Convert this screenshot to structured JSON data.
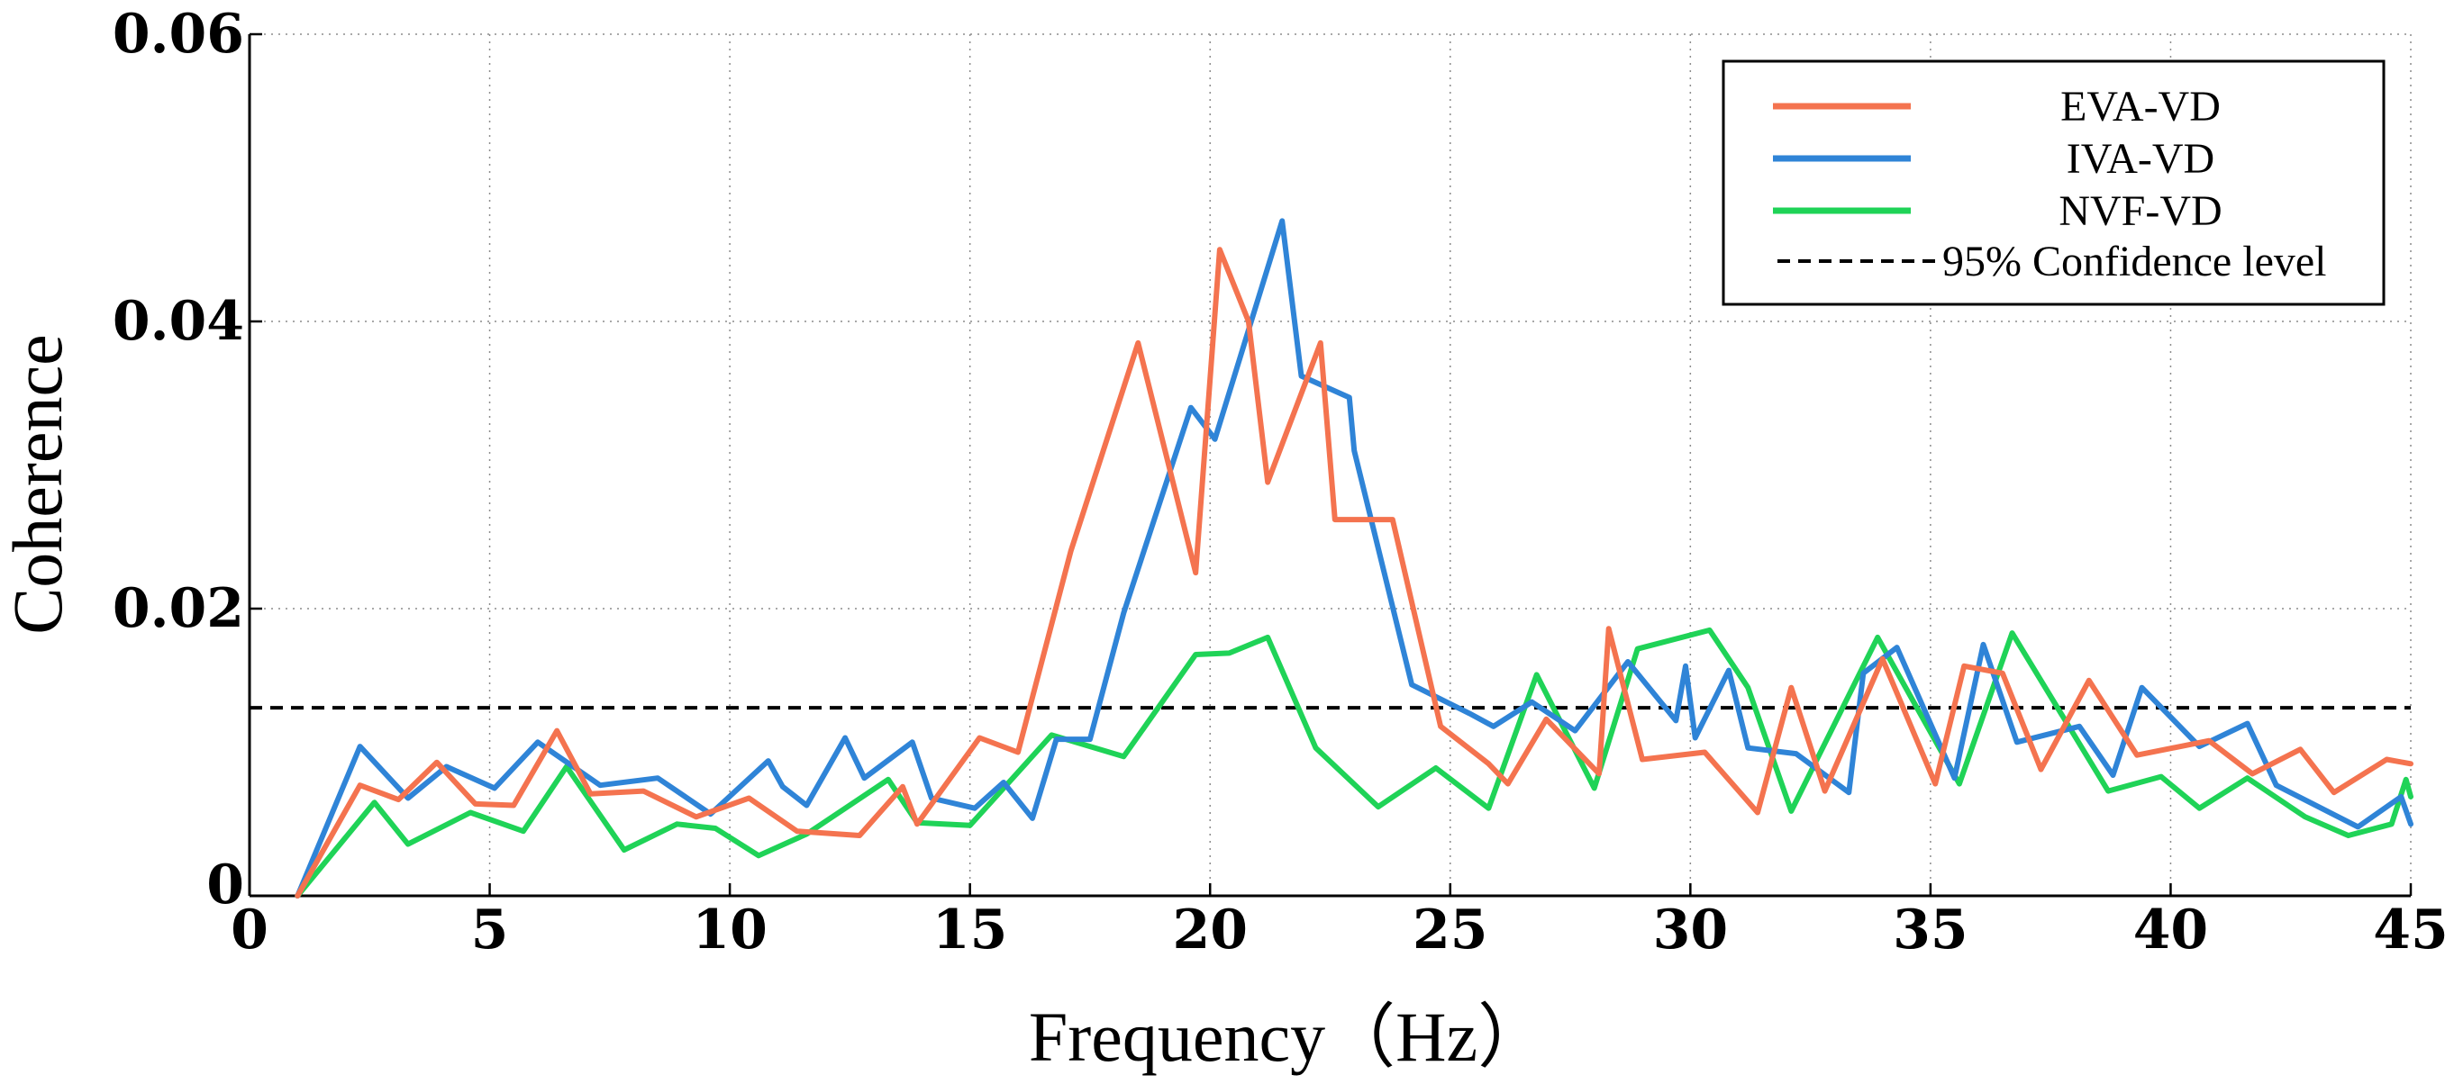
{
  "chart_data": {
    "type": "line",
    "title": "",
    "xlabel": "Frequency（Hz）",
    "ylabel": "Coherence",
    "xlim": [
      0,
      45
    ],
    "ylim": [
      0,
      0.06
    ],
    "x_ticks": [
      0,
      5,
      10,
      15,
      20,
      25,
      30,
      35,
      40,
      45
    ],
    "x_tick_labels": [
      "0",
      "5",
      "10",
      "15",
      "20",
      "25",
      "30",
      "35",
      "40",
      "45"
    ],
    "y_ticks": [
      0,
      0.02,
      0.04,
      0.06
    ],
    "y_tick_labels": [
      "0",
      "0.02",
      "0.04",
      "0.06"
    ],
    "grid": true,
    "legend_position": "top-right",
    "series": [
      {
        "name": "EVA-VD",
        "color": "#f4734f",
        "points": [
          [
            1,
            0
          ],
          [
            2.3,
            0.0077
          ],
          [
            3.1,
            0.0067
          ],
          [
            3.9,
            0.0093
          ],
          [
            4.7,
            0.0064
          ],
          [
            5.5,
            0.0063
          ],
          [
            6.4,
            0.0115
          ],
          [
            7.1,
            0.0071
          ],
          [
            8.2,
            0.0073
          ],
          [
            9.3,
            0.0055
          ],
          [
            10.4,
            0.0068
          ],
          [
            11.4,
            0.0045
          ],
          [
            12.7,
            0.0042
          ],
          [
            13.6,
            0.0076
          ],
          [
            13.9,
            0.005
          ],
          [
            15.2,
            0.011
          ],
          [
            16,
            0.01
          ],
          [
            17.1,
            0.024
          ],
          [
            18.5,
            0.0385
          ],
          [
            19.7,
            0.0225
          ],
          [
            20.2,
            0.045
          ],
          [
            20.8,
            0.04
          ],
          [
            21.2,
            0.0288
          ],
          [
            22.3,
            0.0385
          ],
          [
            22.6,
            0.0262
          ],
          [
            23.8,
            0.0262
          ],
          [
            24.8,
            0.0118
          ],
          [
            25.8,
            0.0092
          ],
          [
            26.2,
            0.0078
          ],
          [
            27,
            0.0123
          ],
          [
            28.1,
            0.0085
          ],
          [
            28.3,
            0.0186
          ],
          [
            29,
            0.0095
          ],
          [
            30.3,
            0.01
          ],
          [
            31.4,
            0.0058
          ],
          [
            32.1,
            0.0145
          ],
          [
            32.8,
            0.0073
          ],
          [
            34,
            0.0165
          ],
          [
            35.1,
            0.0078
          ],
          [
            35.7,
            0.016
          ],
          [
            36.5,
            0.0155
          ],
          [
            37.3,
            0.0088
          ],
          [
            38.3,
            0.015
          ],
          [
            39.3,
            0.0098
          ],
          [
            40.8,
            0.0108
          ],
          [
            41.7,
            0.0085
          ],
          [
            42.7,
            0.0102
          ],
          [
            43.4,
            0.0072
          ],
          [
            44.5,
            0.0095
          ],
          [
            45,
            0.0092
          ]
        ]
      },
      {
        "name": "IVA-VD",
        "color": "#2f84d7",
        "points": [
          [
            1,
            0
          ],
          [
            2.3,
            0.0104
          ],
          [
            3.3,
            0.0068
          ],
          [
            4.1,
            0.009
          ],
          [
            5.1,
            0.0075
          ],
          [
            6,
            0.0107
          ],
          [
            7.3,
            0.0077
          ],
          [
            8.5,
            0.0082
          ],
          [
            9.6,
            0.0057
          ],
          [
            10.8,
            0.0094
          ],
          [
            11.1,
            0.0076
          ],
          [
            11.6,
            0.0063
          ],
          [
            12.4,
            0.011
          ],
          [
            12.8,
            0.0082
          ],
          [
            13.8,
            0.0107
          ],
          [
            14.2,
            0.0068
          ],
          [
            15.1,
            0.0061
          ],
          [
            15.7,
            0.0079
          ],
          [
            16.3,
            0.0054
          ],
          [
            16.8,
            0.0109
          ],
          [
            17.5,
            0.0109
          ],
          [
            18.2,
            0.0197
          ],
          [
            19.6,
            0.034
          ],
          [
            20.1,
            0.0318
          ],
          [
            21.5,
            0.047
          ],
          [
            21.9,
            0.0362
          ],
          [
            22.9,
            0.0347
          ],
          [
            23,
            0.031
          ],
          [
            24.2,
            0.0147
          ],
          [
            25.4,
            0.0127
          ],
          [
            25.9,
            0.0118
          ],
          [
            26.7,
            0.0135
          ],
          [
            27.6,
            0.0115
          ],
          [
            28.7,
            0.0163
          ],
          [
            29.7,
            0.0122
          ],
          [
            29.9,
            0.016
          ],
          [
            30.1,
            0.011
          ],
          [
            30.8,
            0.0157
          ],
          [
            31.2,
            0.0103
          ],
          [
            32.2,
            0.0099
          ],
          [
            33.3,
            0.0072
          ],
          [
            33.6,
            0.0155
          ],
          [
            34.3,
            0.0173
          ],
          [
            35.5,
            0.0082
          ],
          [
            36.1,
            0.0175
          ],
          [
            36.8,
            0.0107
          ],
          [
            38.1,
            0.0118
          ],
          [
            38.8,
            0.0084
          ],
          [
            39.4,
            0.0145
          ],
          [
            40.6,
            0.0104
          ],
          [
            41.6,
            0.012
          ],
          [
            42.2,
            0.0077
          ],
          [
            43.9,
            0.0048
          ],
          [
            44.8,
            0.0069
          ],
          [
            45,
            0.005
          ]
        ]
      },
      {
        "name": "NVF-VD",
        "color": "#1fd357",
        "points": [
          [
            1,
            0
          ],
          [
            2.6,
            0.0065
          ],
          [
            3.3,
            0.0036
          ],
          [
            4.6,
            0.0058
          ],
          [
            5.7,
            0.0045
          ],
          [
            6.6,
            0.009
          ],
          [
            7.8,
            0.0032
          ],
          [
            8.9,
            0.005
          ],
          [
            9.7,
            0.0047
          ],
          [
            10.6,
            0.0028
          ],
          [
            11.6,
            0.0043
          ],
          [
            13.3,
            0.0081
          ],
          [
            13.9,
            0.0051
          ],
          [
            15,
            0.0049
          ],
          [
            16.7,
            0.0112
          ],
          [
            18.2,
            0.0097
          ],
          [
            19.7,
            0.0168
          ],
          [
            20.4,
            0.0169
          ],
          [
            21.2,
            0.018
          ],
          [
            22.2,
            0.0103
          ],
          [
            23.5,
            0.0062
          ],
          [
            24.7,
            0.0089
          ],
          [
            25.8,
            0.0061
          ],
          [
            26.8,
            0.0154
          ],
          [
            28,
            0.0075
          ],
          [
            28.9,
            0.0172
          ],
          [
            30.4,
            0.0185
          ],
          [
            31.2,
            0.0145
          ],
          [
            32.1,
            0.0059
          ],
          [
            33.9,
            0.018
          ],
          [
            35.6,
            0.0078
          ],
          [
            36.7,
            0.0183
          ],
          [
            38.7,
            0.0073
          ],
          [
            39.8,
            0.0083
          ],
          [
            40.6,
            0.0061
          ],
          [
            41.6,
            0.0082
          ],
          [
            42.8,
            0.0055
          ],
          [
            43.7,
            0.0042
          ],
          [
            44.6,
            0.005
          ],
          [
            44.9,
            0.0081
          ],
          [
            45,
            0.0069
          ]
        ]
      },
      {
        "name": "95% Confidence level",
        "color": "#000000",
        "style": "dashed",
        "points": [
          [
            0,
            0.0131
          ],
          [
            45,
            0.0131
          ]
        ]
      }
    ]
  }
}
